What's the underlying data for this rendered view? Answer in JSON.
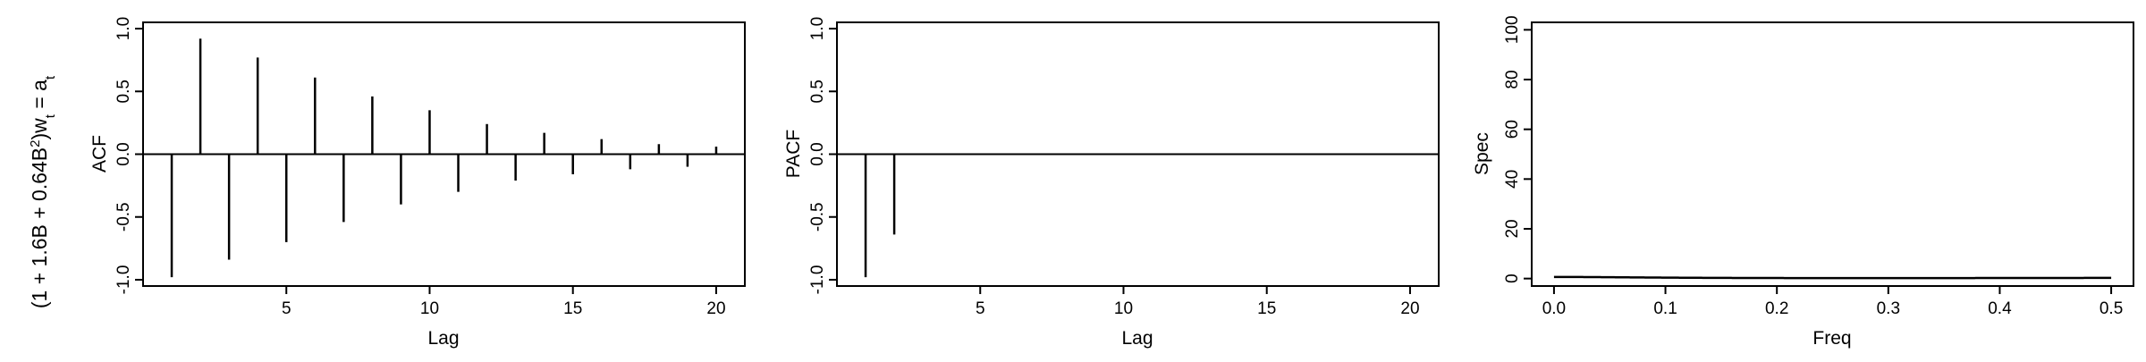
{
  "figure": {
    "row_title": {
      "prefix": "(1 + 1.6B + 0.64B",
      "exp": "2",
      "mid": ")w",
      "sub1": "t",
      "eq": " = a",
      "sub2": "t"
    }
  },
  "chart_data": [
    {
      "type": "bar",
      "ylabel": "ACF",
      "xlabel": "Lag",
      "xlim": [
        0,
        21
      ],
      "ylim": [
        -1.05,
        1.05
      ],
      "xticks": [
        5,
        10,
        15,
        20
      ],
      "yticks": [
        -1.0,
        -0.5,
        0.0,
        0.5,
        1.0
      ],
      "ytick_labels": [
        "-1.0",
        "-0.5",
        "0.0",
        "0.5",
        "1.0"
      ],
      "zero_line": true,
      "x": [
        1,
        2,
        3,
        4,
        5,
        6,
        7,
        8,
        9,
        10,
        11,
        12,
        13,
        14,
        15,
        16,
        17,
        18,
        19,
        20
      ],
      "values": [
        -0.98,
        0.92,
        -0.84,
        0.77,
        -0.7,
        0.61,
        -0.54,
        0.46,
        -0.4,
        0.35,
        -0.3,
        0.24,
        -0.21,
        0.17,
        -0.16,
        0.12,
        -0.12,
        0.08,
        -0.1,
        0.06
      ]
    },
    {
      "type": "bar",
      "ylabel": "PACF",
      "xlabel": "Lag",
      "xlim": [
        0,
        21
      ],
      "ylim": [
        -1.05,
        1.05
      ],
      "xticks": [
        5,
        10,
        15,
        20
      ],
      "yticks": [
        -1.0,
        -0.5,
        0.0,
        0.5,
        1.0
      ],
      "ytick_labels": [
        "-1.0",
        "-0.5",
        "0.0",
        "0.5",
        "1.0"
      ],
      "zero_line": true,
      "x": [
        1,
        2
      ],
      "values": [
        -0.98,
        -0.64
      ]
    },
    {
      "type": "line",
      "ylabel": "Spec",
      "xlabel": "Freq",
      "xlim": [
        -0.02,
        0.52
      ],
      "ylim": [
        -3,
        103
      ],
      "xticks": [
        0.0,
        0.1,
        0.2,
        0.3,
        0.4,
        0.5
      ],
      "xtick_labels": [
        "0.0",
        "0.1",
        "0.2",
        "0.3",
        "0.4",
        "0.5"
      ],
      "yticks": [
        0,
        20,
        40,
        60,
        80,
        100
      ],
      "ytick_labels": [
        "0",
        "20",
        "40",
        "60",
        "80",
        "100"
      ],
      "curve": {
        "type": "ar2_spectrum",
        "phi1": -1.6,
        "phi2": -0.64,
        "scale": 1.0,
        "x_from": 0.0,
        "x_to": 0.5
      }
    }
  ]
}
